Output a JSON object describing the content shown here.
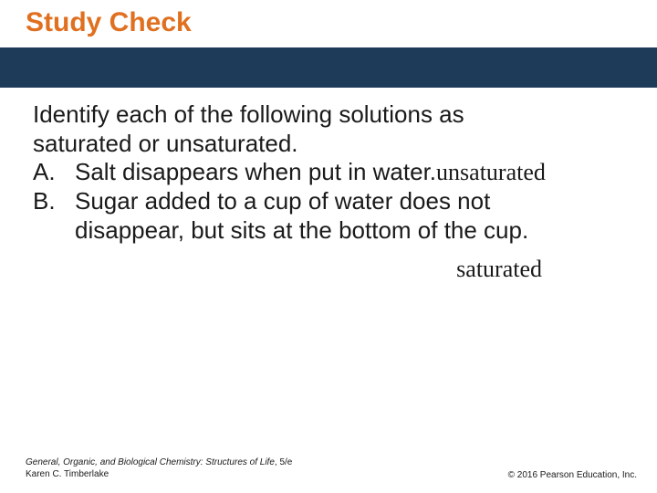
{
  "colors": {
    "title": "#e07020",
    "band": "#1f3b5a",
    "body_text": "#1a1a1a",
    "footer_text": "#1a1a1a",
    "background": "#ffffff"
  },
  "title": "Study Check",
  "prompt_line1": "Identify each of the following solutions as",
  "prompt_line2": "saturated or unsaturated.",
  "items": [
    {
      "letter": "A.",
      "text_part1": "Salt disappears when put in water.",
      "answer": "unsaturated"
    },
    {
      "letter": "B.",
      "text_line1": "Sugar added to a cup of water does not",
      "text_line2": "disappear, but sits at the bottom of the cup.",
      "answer": "saturated"
    }
  ],
  "footer": {
    "book_title": "General, Organic, and Biological Chemistry: Structures of Life",
    "edition": ", 5/e",
    "author": "Karen C. Timberlake",
    "copyright": "© 2016 Pearson Education, Inc."
  }
}
